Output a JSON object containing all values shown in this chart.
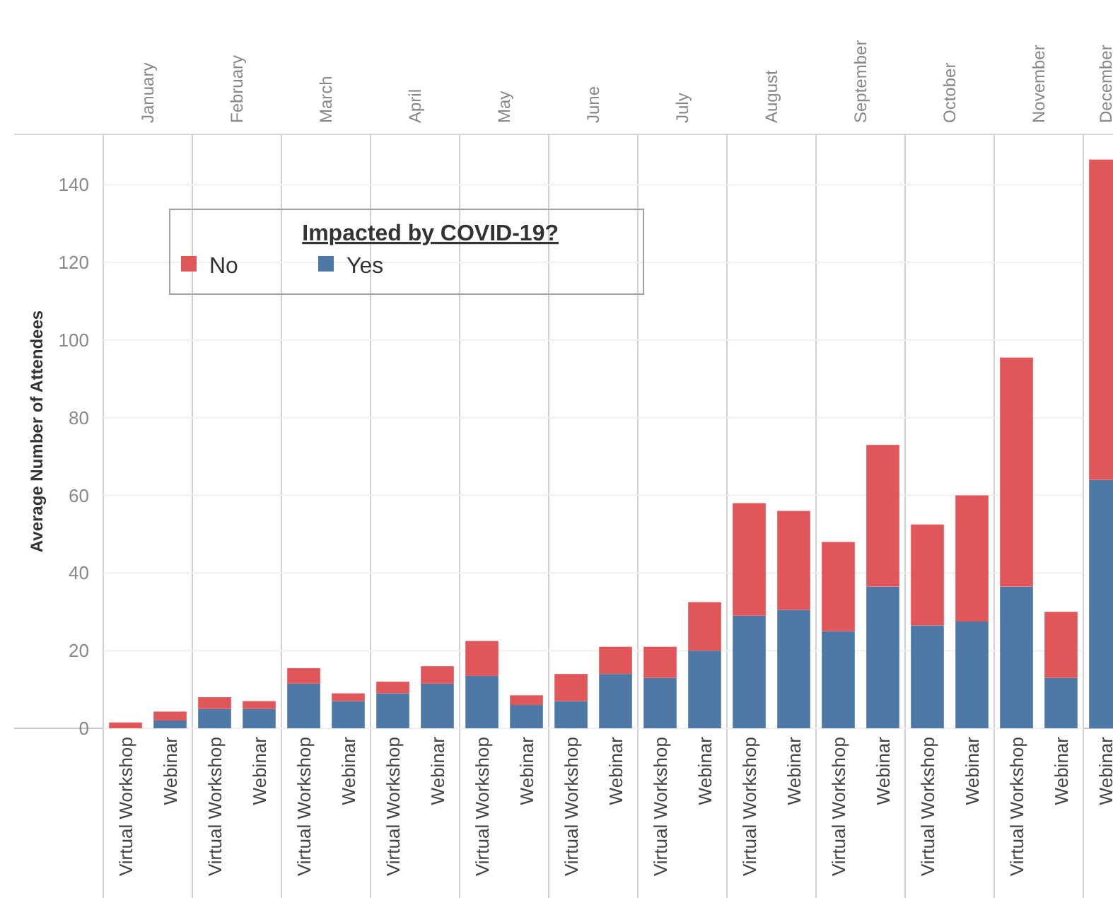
{
  "chart_data": [
    {
      "type": "bar",
      "stacked": true,
      "title": "January",
      "ylabel": "Average Number of Attendees",
      "legend": "top right",
      "legend_title": "Impacted by COVID-19?",
      "categories": [
        "Virtual Workshop",
        "Webinar"
      ],
      "ylim": [
        0,
        153
      ],
      "yticks": [
        0,
        20,
        40,
        60,
        80,
        100,
        120,
        140
      ],
      "grid": "y",
      "series": [
        {
          "name": "Yes",
          "color": "#4e79a7",
          "values": [
            0,
            2
          ]
        },
        {
          "name": "No",
          "color": "#e15759",
          "values": [
            1.5,
            2.3
          ]
        }
      ]
    },
    {
      "type": "bar",
      "stacked": true,
      "title": "February",
      "categories": [
        "Virtual Workshop",
        "Webinar"
      ],
      "ylim": [
        0,
        153
      ],
      "yticks": [
        0,
        20,
        40,
        60,
        80,
        100,
        120,
        140
      ],
      "grid": "y",
      "tick_labels": "x",
      "series": [
        {
          "color": "#4e79a7",
          "values": [
            5,
            5
          ]
        },
        {
          "color": "#e15759",
          "values": [
            3,
            2
          ]
        }
      ]
    },
    {
      "type": "bar",
      "stacked": true,
      "title": "March",
      "categories": [
        "Virtual Workshop",
        "Webinar"
      ],
      "ylim": [
        0,
        153
      ],
      "yticks": [
        0,
        20,
        40,
        60,
        80,
        100,
        120,
        140
      ],
      "grid": "y",
      "tick_labels": "x",
      "series": [
        {
          "color": "#4e79a7",
          "values": [
            11.5,
            7
          ]
        },
        {
          "color": "#e15759",
          "values": [
            4,
            2
          ]
        }
      ]
    },
    {
      "type": "bar",
      "stacked": true,
      "title": "April",
      "categories": [
        "Virtual Workshop",
        "Webinar"
      ],
      "ylim": [
        0,
        153
      ],
      "yticks": [
        0,
        20,
        40,
        60,
        80,
        100,
        120,
        140
      ],
      "grid": "y",
      "tick_labels": "x",
      "series": [
        {
          "color": "#4e79a7",
          "values": [
            9,
            11.5
          ]
        },
        {
          "color": "#e15759",
          "values": [
            3,
            4.5
          ]
        }
      ]
    },
    {
      "type": "bar",
      "stacked": true,
      "title": "May",
      "categories": [
        "Virtual Workshop",
        "Webinar"
      ],
      "ylim": [
        0,
        153
      ],
      "yticks": [
        0,
        20,
        40,
        60,
        80,
        100,
        120,
        140
      ],
      "grid": "y",
      "tick_labels": "x",
      "series": [
        {
          "color": "#4e79a7",
          "values": [
            13.5,
            6
          ]
        },
        {
          "color": "#e15759",
          "values": [
            9,
            2.5
          ]
        }
      ]
    },
    {
      "type": "bar",
      "stacked": true,
      "title": "June",
      "categories": [
        "Virtual Workshop",
        "Webinar"
      ],
      "ylim": [
        0,
        153
      ],
      "yticks": [
        0,
        20,
        40,
        60,
        80,
        100,
        120,
        140
      ],
      "grid": "y",
      "tick_labels": "x",
      "series": [
        {
          "color": "#4e79a7",
          "values": [
            7,
            14
          ]
        },
        {
          "color": "#e15759",
          "values": [
            7,
            7
          ]
        }
      ]
    },
    {
      "type": "bar",
      "stacked": true,
      "title": "July",
      "categories": [
        "Virtual Workshop",
        "Webinar"
      ],
      "ylim": [
        0,
        153
      ],
      "yticks": [
        0,
        20,
        40,
        60,
        80,
        100,
        120,
        140
      ],
      "grid": "y",
      "tick_labels": "x",
      "series": [
        {
          "color": "#4e79a7",
          "values": [
            13,
            20
          ]
        },
        {
          "color": "#e15759",
          "values": [
            8,
            12.5
          ]
        }
      ]
    },
    {
      "type": "bar",
      "stacked": true,
      "title": "August",
      "categories": [
        "Virtual Workshop",
        "Webinar"
      ],
      "ylim": [
        0,
        153
      ],
      "yticks": [
        0,
        20,
        40,
        60,
        80,
        100,
        120,
        140
      ],
      "grid": "y",
      "tick_labels": "x",
      "series": [
        {
          "color": "#4e79a7",
          "values": [
            29,
            30.5
          ]
        },
        {
          "color": "#e15759",
          "values": [
            29,
            25.5
          ]
        }
      ]
    },
    {
      "type": "bar",
      "stacked": true,
      "title": "September",
      "categories": [
        "Virtual Workshop",
        "Webinar"
      ],
      "ylim": [
        0,
        153
      ],
      "yticks": [
        0,
        20,
        40,
        60,
        80,
        100,
        120,
        140
      ],
      "grid": "y",
      "tick_labels": "x",
      "series": [
        {
          "color": "#4e79a7",
          "values": [
            25,
            36.5
          ]
        },
        {
          "color": "#e15759",
          "values": [
            23,
            36.5
          ]
        }
      ]
    },
    {
      "type": "bar",
      "stacked": true,
      "title": "October",
      "categories": [
        "Virtual Workshop",
        "Webinar"
      ],
      "ylim": [
        0,
        153
      ],
      "yticks": [
        0,
        20,
        40,
        60,
        80,
        100,
        120,
        140
      ],
      "grid": "y",
      "tick_labels": "x",
      "series": [
        {
          "color": "#4e79a7",
          "values": [
            26.5,
            27.5
          ]
        },
        {
          "color": "#e15759",
          "values": [
            26,
            32.5
          ]
        }
      ]
    },
    {
      "type": "bar",
      "stacked": true,
      "title": "November",
      "categories": [
        "Virtual Workshop",
        "Webinar"
      ],
      "ylim": [
        0,
        153
      ],
      "yticks": [
        0,
        20,
        40,
        60,
        80,
        100,
        120,
        140
      ],
      "grid": "y",
      "tick_labels": "x",
      "series": [
        {
          "color": "#4e79a7",
          "values": [
            36.5,
            13
          ]
        },
        {
          "color": "#e15759",
          "values": [
            59,
            17
          ]
        }
      ]
    },
    {
      "type": "bar",
      "stacked": true,
      "title": "December",
      "categories": [
        "Webinar"
      ],
      "ylim": [
        0,
        153
      ],
      "yticks": [
        0,
        20,
        40,
        60,
        80,
        100,
        120,
        140
      ],
      "grid": false,
      "tick_labels": "x",
      "series": [
        {
          "color": "#4e79a7",
          "values": [
            64
          ]
        },
        {
          "color": "#e15759",
          "values": [
            82.5
          ]
        }
      ]
    }
  ]
}
